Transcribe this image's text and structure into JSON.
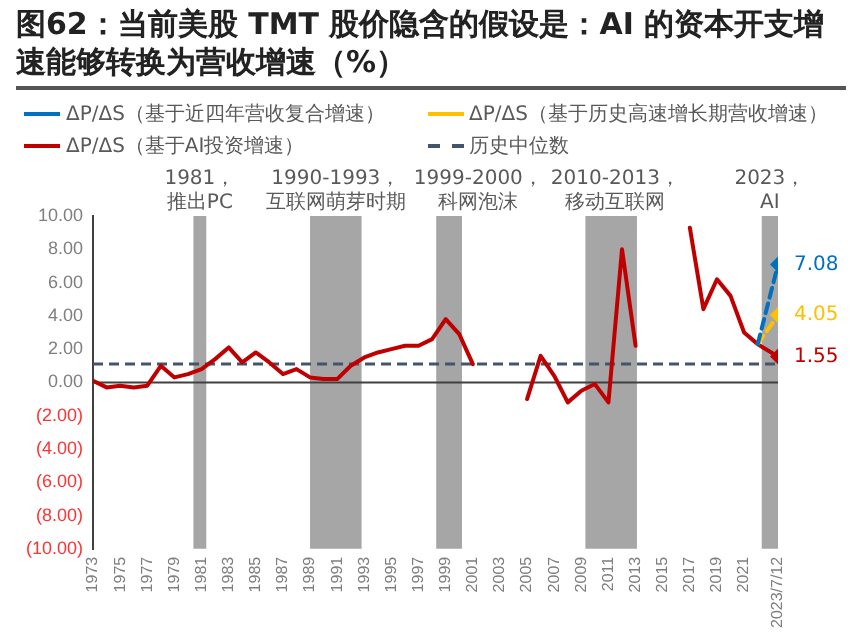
{
  "chart_data": {
    "type": "line",
    "title": "图62：当前美股 TMT 股价隐含的假设是：AI 的资本开支增速能够转换为营收增速（%）",
    "x": [
      1973,
      1974,
      1975,
      1976,
      1977,
      1978,
      1979,
      1980,
      1981,
      1982,
      1983,
      1984,
      1985,
      1986,
      1987,
      1988,
      1989,
      1990,
      1991,
      1992,
      1993,
      1994,
      1995,
      1996,
      1997,
      1998,
      1999,
      2000,
      2001,
      2002,
      2003,
      2004,
      2005,
      2006,
      2007,
      2008,
      2009,
      2010,
      2011,
      2012,
      2013,
      2014,
      2015,
      2016,
      2017,
      2018,
      2019,
      2020,
      2021,
      2022,
      2023.5
    ],
    "series": [
      {
        "name": "ΔP/ΔS（基于近四年营收复合增速）",
        "color": "#0070c0",
        "line_style": "dashed",
        "marker": "diamond",
        "values": [
          null,
          null,
          null,
          null,
          null,
          null,
          null,
          null,
          null,
          null,
          null,
          null,
          null,
          null,
          null,
          null,
          null,
          null,
          null,
          null,
          null,
          null,
          null,
          null,
          null,
          null,
          null,
          null,
          null,
          null,
          null,
          null,
          null,
          null,
          null,
          null,
          null,
          null,
          null,
          null,
          null,
          null,
          null,
          null,
          null,
          null,
          null,
          null,
          null,
          2.3,
          7.08
        ],
        "value_labels": [
          null,
          null,
          null,
          null,
          null,
          null,
          null,
          null,
          null,
          null,
          null,
          null,
          null,
          null,
          null,
          null,
          null,
          null,
          null,
          null,
          null,
          null,
          null,
          null,
          null,
          null,
          null,
          null,
          null,
          null,
          null,
          null,
          null,
          null,
          null,
          null,
          null,
          null,
          null,
          null,
          null,
          null,
          null,
          null,
          null,
          null,
          null,
          null,
          null,
          null,
          "7.08"
        ]
      },
      {
        "name": "ΔP/ΔS（基于历史高速增长期营收增速）",
        "color": "#ffc000",
        "line_style": "dashed",
        "marker": "diamond",
        "values": [
          null,
          null,
          null,
          null,
          null,
          null,
          null,
          null,
          null,
          null,
          null,
          null,
          null,
          null,
          null,
          null,
          null,
          null,
          null,
          null,
          null,
          null,
          null,
          null,
          null,
          null,
          null,
          null,
          null,
          null,
          null,
          null,
          null,
          null,
          null,
          null,
          null,
          null,
          null,
          null,
          null,
          null,
          null,
          null,
          null,
          null,
          null,
          null,
          null,
          2.3,
          4.05
        ],
        "value_labels": [
          null,
          null,
          null,
          null,
          null,
          null,
          null,
          null,
          null,
          null,
          null,
          null,
          null,
          null,
          null,
          null,
          null,
          null,
          null,
          null,
          null,
          null,
          null,
          null,
          null,
          null,
          null,
          null,
          null,
          null,
          null,
          null,
          null,
          null,
          null,
          null,
          null,
          null,
          null,
          null,
          null,
          null,
          null,
          null,
          null,
          null,
          null,
          null,
          null,
          null,
          "4.05"
        ]
      },
      {
        "name": "ΔP/ΔS（基于AI投资增速）",
        "color": "#c00000",
        "line_style": "solid",
        "marker": "none",
        "values": [
          0.1,
          -0.3,
          -0.2,
          -0.3,
          -0.2,
          1.0,
          0.3,
          0.5,
          0.8,
          1.4,
          2.1,
          1.2,
          1.8,
          1.2,
          0.5,
          0.8,
          0.3,
          0.2,
          0.2,
          1.0,
          1.5,
          1.8,
          2.0,
          2.2,
          2.2,
          2.6,
          3.8,
          2.9,
          1.1,
          null,
          null,
          null,
          -1.0,
          1.6,
          0.4,
          -1.2,
          -0.5,
          -0.1,
          -1.2,
          8.0,
          2.2,
          null,
          null,
          null,
          9.3,
          4.4,
          6.2,
          5.2,
          3.0,
          2.3,
          1.55
        ]
      },
      {
        "type": "scatter",
        "color": "#c00000",
        "marker": "diamond",
        "x": [
          2023.5
        ],
        "values": [
          1.55
        ],
        "value_labels": [
          "1.55"
        ]
      }
    ],
    "xlim": [
      1973,
      2023.5
    ],
    "xticks": [
      1973,
      1975,
      1977,
      1979,
      1981,
      1983,
      1985,
      1987,
      1989,
      1991,
      1993,
      1995,
      1997,
      1999,
      2001,
      2003,
      2005,
      2007,
      2009,
      2011,
      2013,
      2015,
      2017,
      2019,
      2021,
      {
        "value": 2023.5,
        "label": "2023/7/12"
      }
    ],
    "ylim": [
      -10,
      10
    ],
    "yticks": [
      {
        "value": -10,
        "label": "(10.00)"
      },
      {
        "value": -8,
        "label": "(8.00)"
      },
      {
        "value": -6,
        "label": "(6.00)"
      },
      {
        "value": -4,
        "label": "(4.00)"
      },
      {
        "value": -2,
        "label": "(2.00)"
      },
      {
        "value": 0,
        "label": "0.00"
      },
      {
        "value": 2,
        "label": "2.00"
      },
      {
        "value": 4,
        "label": "4.00"
      },
      {
        "value": 6,
        "label": "6.00"
      },
      {
        "value": 8,
        "label": "8.00"
      },
      {
        "value": 10,
        "label": "10.00"
      }
    ],
    "ref_lines": [
      {
        "axis": "y",
        "value": 0,
        "color": "#404040",
        "line_style": "solid"
      },
      {
        "axis": "y",
        "value": 1.1,
        "label": "历史中位数",
        "color": "#44546a",
        "line_style": "dashed"
      }
    ],
    "bands": [
      {
        "axis": "x",
        "from": 1980.4,
        "to": 1981.35,
        "label": "1981，推出PC",
        "color": "#a6a6a6"
      },
      {
        "axis": "x",
        "from": 1989.0,
        "to": 1992.8,
        "label": "1990-1993，互联网萌芽时期",
        "color": "#a6a6a6"
      },
      {
        "axis": "x",
        "from": 1998.3,
        "to": 2000.2,
        "label": "1999-2000，科网泡沫",
        "color": "#a6a6a6"
      },
      {
        "axis": "x",
        "from": 2009.3,
        "to": 2013.1,
        "label": "2010-2013，移动互联网",
        "color": "#a6a6a6"
      },
      {
        "axis": "x",
        "from": 2022.3,
        "to": 2023.5,
        "label": "2023，AI",
        "color": "#a6a6a6"
      }
    ],
    "legend": "top",
    "grid": false
  }
}
